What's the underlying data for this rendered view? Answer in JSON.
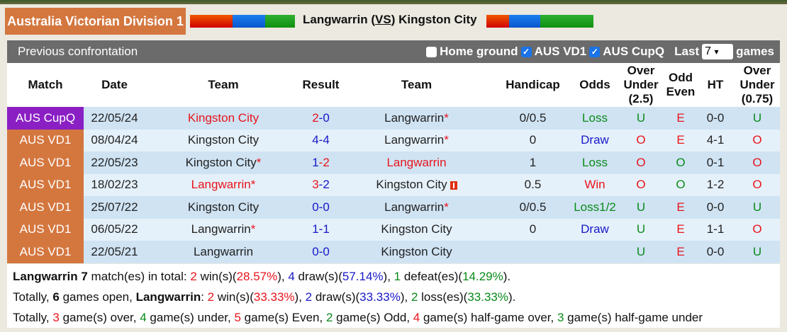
{
  "league": "Australia Victorian Division 1",
  "matchup": {
    "home": "Langwarrin",
    "vs": "VS",
    "away": "Kingston City"
  },
  "panel": {
    "title": "Previous confrontation",
    "home_ground": "Home ground",
    "home_ground_checked": false,
    "filter1": "AUS VD1",
    "filter1_checked": true,
    "filter2": "AUS CupQ",
    "filter2_checked": true,
    "last_label": "Last",
    "last_value": "7",
    "games_label": "games"
  },
  "columns": [
    "Match",
    "Date",
    "Team",
    "Result",
    "Team",
    "Handicap",
    "Odds",
    "Over Under (2.5)",
    "Odd Even",
    "HT",
    "Over Under (0.75)"
  ],
  "colors": {
    "red": "#e8141c",
    "blue": "#1818c8",
    "green": "#0a8a1a",
    "cupq": "#8a1fc4",
    "vd1": "#d4773f"
  },
  "rows": [
    {
      "comp": "AUS CupQ",
      "date": "22/05/24",
      "home": "Kingston City",
      "home_star": false,
      "home_color": "red",
      "h": "2",
      "a": "0",
      "h_color": "red",
      "a_color": "blue",
      "away": "Langwarrin",
      "away_star": true,
      "away_color": "",
      "away_flag": false,
      "handicap": "0/0.5",
      "odds": "Loss",
      "odds_color": "green",
      "ou": "U",
      "oe": "E",
      "ht": "0-0",
      "ou2": "U"
    },
    {
      "comp": "AUS VD1",
      "date": "08/04/24",
      "home": "Kingston City",
      "home_star": false,
      "home_color": "",
      "h": "4",
      "a": "4",
      "h_color": "blue",
      "a_color": "blue",
      "away": "Langwarrin",
      "away_star": true,
      "away_color": "",
      "away_flag": false,
      "handicap": "0",
      "odds": "Draw",
      "odds_color": "blue",
      "ou": "O",
      "oe": "E",
      "ht": "4-1",
      "ou2": "O"
    },
    {
      "comp": "AUS VD1",
      "date": "22/05/23",
      "home": "Kingston City",
      "home_star": true,
      "home_color": "",
      "h": "1",
      "a": "2",
      "h_color": "blue",
      "a_color": "red",
      "away": "Langwarrin",
      "away_star": false,
      "away_color": "red",
      "away_flag": false,
      "handicap": "1",
      "odds": "Loss",
      "odds_color": "green",
      "ou": "O",
      "oe": "O",
      "ht": "0-1",
      "ou2": "O"
    },
    {
      "comp": "AUS VD1",
      "date": "18/02/23",
      "home": "Langwarrin",
      "home_star": true,
      "home_color": "red",
      "h": "3",
      "a": "2",
      "h_color": "red",
      "a_color": "blue",
      "away": "Kingston City",
      "away_star": false,
      "away_color": "",
      "away_flag": true,
      "handicap": "0.5",
      "odds": "Win",
      "odds_color": "red",
      "ou": "O",
      "oe": "O",
      "ht": "1-2",
      "ou2": "O"
    },
    {
      "comp": "AUS VD1",
      "date": "25/07/22",
      "home": "Kingston City",
      "home_star": false,
      "home_color": "",
      "h": "0",
      "a": "0",
      "h_color": "blue",
      "a_color": "blue",
      "away": "Langwarrin",
      "away_star": true,
      "away_color": "",
      "away_flag": false,
      "handicap": "0/0.5",
      "odds": "Loss1/2",
      "odds_color": "green",
      "ou": "U",
      "oe": "E",
      "ht": "0-0",
      "ou2": "U"
    },
    {
      "comp": "AUS VD1",
      "date": "06/05/22",
      "home": "Langwarrin",
      "home_star": true,
      "home_color": "",
      "h": "1",
      "a": "1",
      "h_color": "blue",
      "a_color": "blue",
      "away": "Kingston City",
      "away_star": false,
      "away_color": "",
      "away_flag": false,
      "handicap": "0",
      "odds": "Draw",
      "odds_color": "blue",
      "ou": "U",
      "oe": "E",
      "ht": "1-1",
      "ou2": "O"
    },
    {
      "comp": "AUS VD1",
      "date": "22/05/21",
      "home": "Langwarrin",
      "home_star": false,
      "home_color": "",
      "h": "0",
      "a": "0",
      "h_color": "blue",
      "a_color": "blue",
      "away": "Kingston City",
      "away_star": false,
      "away_color": "",
      "away_flag": false,
      "handicap": "",
      "odds": "",
      "odds_color": "",
      "ou": "U",
      "oe": "E",
      "ht": "0-0",
      "ou2": "U"
    }
  ],
  "summary": [
    [
      {
        "t": "Langwarrin 7",
        "b": true
      },
      {
        "t": " match(es) in total: "
      },
      {
        "t": "2",
        "c": "red"
      },
      {
        "t": " win(s)("
      },
      {
        "t": "28.57%",
        "c": "red"
      },
      {
        "t": "), "
      },
      {
        "t": "4",
        "c": "blue"
      },
      {
        "t": " draw(s)("
      },
      {
        "t": "57.14%",
        "c": "blue"
      },
      {
        "t": "), "
      },
      {
        "t": "1",
        "c": "green"
      },
      {
        "t": " defeat(es)("
      },
      {
        "t": "14.29%",
        "c": "green"
      },
      {
        "t": ")."
      }
    ],
    [
      {
        "t": "Totally, "
      },
      {
        "t": "6",
        "b": true
      },
      {
        "t": " games open, "
      },
      {
        "t": "Langwarrin",
        "b": true
      },
      {
        "t": ": "
      },
      {
        "t": "2",
        "c": "red"
      },
      {
        "t": " win(s)("
      },
      {
        "t": "33.33%",
        "c": "red"
      },
      {
        "t": "), "
      },
      {
        "t": "2",
        "c": "blue"
      },
      {
        "t": " draw(s)("
      },
      {
        "t": "33.33%",
        "c": "blue"
      },
      {
        "t": "), "
      },
      {
        "t": "2",
        "c": "green"
      },
      {
        "t": " loss(es)("
      },
      {
        "t": "33.33%",
        "c": "green"
      },
      {
        "t": ")."
      }
    ],
    [
      {
        "t": "Totally, "
      },
      {
        "t": "3",
        "c": "red"
      },
      {
        "t": " game(s) over, "
      },
      {
        "t": "4",
        "c": "green"
      },
      {
        "t": " game(s) under, "
      },
      {
        "t": "5",
        "c": "red"
      },
      {
        "t": " game(s) Even, "
      },
      {
        "t": "2",
        "c": "green"
      },
      {
        "t": " game(s) Odd, "
      },
      {
        "t": "4",
        "c": "red"
      },
      {
        "t": " game(s) half-game over, "
      },
      {
        "t": "3",
        "c": "green"
      },
      {
        "t": " game(s) half-game under"
      }
    ]
  ]
}
